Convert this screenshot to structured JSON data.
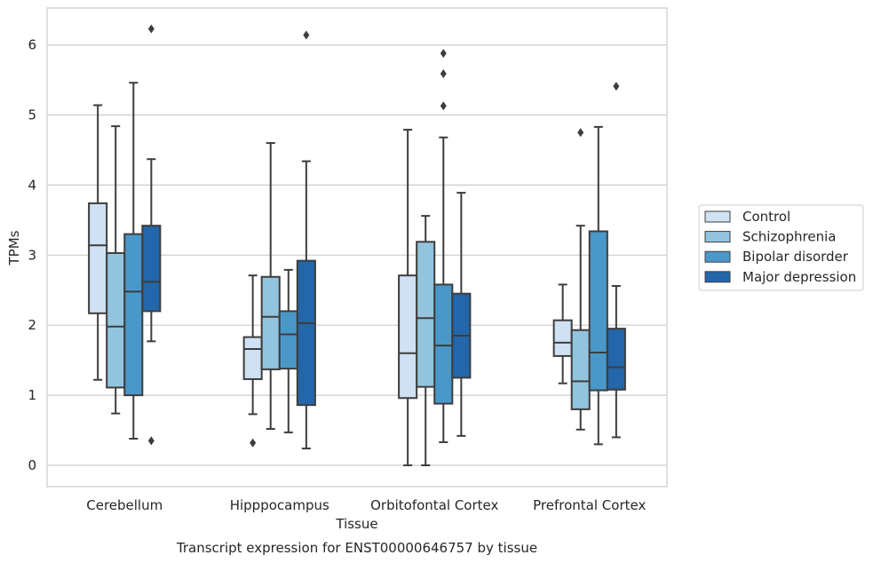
{
  "chart_data": {
    "type": "box",
    "title": "",
    "caption": "Transcript expression for ENST00000646757 by tissue",
    "xlabel": "Tissue",
    "ylabel": "TPMs",
    "ylim": [
      -0.3,
      6.55
    ],
    "yticks": [
      0,
      1,
      2,
      3,
      4,
      5,
      6
    ],
    "grid": true,
    "legend_position": "right",
    "categories": [
      "Cerebellum",
      "Hipppocampus",
      "Orbitofontal Cortex",
      "Prefrontal Cortex"
    ],
    "series": [
      {
        "name": "Control",
        "color": "#cfe1f2",
        "boxes": [
          {
            "whisker_low": 1.22,
            "q1": 2.17,
            "median": 3.14,
            "q3": 3.74,
            "whisker_high": 5.14,
            "outliers": []
          },
          {
            "whisker_low": 0.73,
            "q1": 1.23,
            "median": 1.66,
            "q3": 1.83,
            "whisker_high": 2.71,
            "outliers": [
              0.32
            ]
          },
          {
            "whisker_low": 0.0,
            "q1": 0.96,
            "median": 1.6,
            "q3": 2.71,
            "whisker_high": 4.79,
            "outliers": []
          },
          {
            "whisker_low": 1.17,
            "q1": 1.56,
            "median": 1.75,
            "q3": 2.07,
            "whisker_high": 2.58,
            "outliers": []
          }
        ]
      },
      {
        "name": "Schizophrenia",
        "color": "#93c4de",
        "boxes": [
          {
            "whisker_low": 0.74,
            "q1": 1.11,
            "median": 1.98,
            "q3": 3.03,
            "whisker_high": 4.84,
            "outliers": []
          },
          {
            "whisker_low": 0.52,
            "q1": 1.37,
            "median": 2.12,
            "q3": 2.69,
            "whisker_high": 4.6,
            "outliers": []
          },
          {
            "whisker_low": 0.0,
            "q1": 1.12,
            "median": 2.1,
            "q3": 3.19,
            "whisker_high": 3.56,
            "outliers": []
          },
          {
            "whisker_low": 0.51,
            "q1": 0.8,
            "median": 1.2,
            "q3": 1.93,
            "whisker_high": 3.42,
            "outliers": [
              4.75
            ]
          }
        ]
      },
      {
        "name": "Bipolar disorder",
        "color": "#4a98c9",
        "boxes": [
          {
            "whisker_low": 0.38,
            "q1": 1.0,
            "median": 2.48,
            "q3": 3.3,
            "whisker_high": 5.46,
            "outliers": []
          },
          {
            "whisker_low": 0.47,
            "q1": 1.38,
            "median": 1.87,
            "q3": 2.2,
            "whisker_high": 2.79,
            "outliers": []
          },
          {
            "whisker_low": 0.33,
            "q1": 0.88,
            "median": 1.71,
            "q3": 2.58,
            "whisker_high": 4.68,
            "outliers": [
              5.13,
              5.59,
              5.88
            ]
          },
          {
            "whisker_low": 0.3,
            "q1": 1.07,
            "median": 1.61,
            "q3": 3.34,
            "whisker_high": 4.83,
            "outliers": []
          }
        ]
      },
      {
        "name": "Major depression",
        "color": "#2366a9",
        "boxes": [
          {
            "whisker_low": 1.77,
            "q1": 2.2,
            "median": 2.62,
            "q3": 3.42,
            "whisker_high": 4.37,
            "outliers": [
              0.35,
              6.23
            ]
          },
          {
            "whisker_low": 0.24,
            "q1": 0.86,
            "median": 2.03,
            "q3": 2.92,
            "whisker_high": 4.34,
            "outliers": [
              6.14
            ]
          },
          {
            "whisker_low": 0.42,
            "q1": 1.25,
            "median": 1.85,
            "q3": 2.45,
            "whisker_high": 3.89,
            "outliers": []
          },
          {
            "whisker_low": 0.4,
            "q1": 1.08,
            "median": 1.4,
            "q3": 1.95,
            "whisker_high": 2.56,
            "outliers": [
              5.41
            ]
          }
        ]
      }
    ]
  }
}
